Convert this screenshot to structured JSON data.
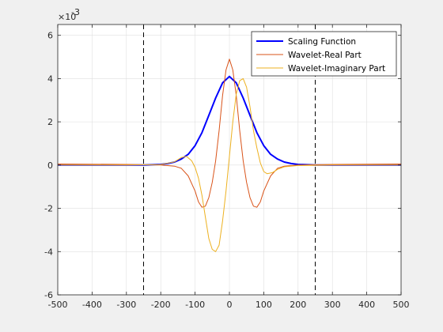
{
  "chart_data": {
    "type": "line",
    "xlim": [
      -500,
      500
    ],
    "ylim": [
      -6,
      6.5
    ],
    "y_exponent_label": "×10",
    "y_exponent_power": "-3",
    "xticks": [
      -500,
      -400,
      -300,
      -200,
      -100,
      0,
      100,
      200,
      300,
      400,
      500
    ],
    "yticks": [
      -6,
      -4,
      -2,
      0,
      2,
      4,
      6
    ],
    "grid": true,
    "legend_position": "top-right",
    "vlines": [
      -250,
      250
    ],
    "series": [
      {
        "name": "Scaling Function",
        "color": "#0000ff",
        "x": [
          -500,
          -300,
          -250,
          -200,
          -180,
          -160,
          -140,
          -120,
          -100,
          -80,
          -60,
          -40,
          -20,
          0,
          20,
          40,
          60,
          80,
          100,
          120,
          140,
          160,
          180,
          200,
          250,
          300,
          500
        ],
        "y": [
          0,
          0,
          0,
          0.03,
          0.07,
          0.14,
          0.28,
          0.5,
          0.9,
          1.5,
          2.3,
          3.1,
          3.8,
          4.1,
          3.8,
          3.1,
          2.3,
          1.5,
          0.9,
          0.5,
          0.28,
          0.14,
          0.07,
          0.03,
          0,
          0,
          0
        ]
      },
      {
        "name": "Wavelet-Real Part",
        "color": "#d95319",
        "x": [
          -500,
          -300,
          -200,
          -160,
          -140,
          -120,
          -100,
          -90,
          -80,
          -70,
          -60,
          -50,
          -40,
          -30,
          -20,
          -10,
          0,
          10,
          20,
          30,
          40,
          50,
          60,
          70,
          80,
          90,
          100,
          120,
          140,
          160,
          200,
          300,
          500
        ],
        "y": [
          0.05,
          0.03,
          0,
          -0.05,
          -0.15,
          -0.5,
          -1.2,
          -1.7,
          -1.95,
          -1.9,
          -1.5,
          -0.8,
          0.2,
          1.6,
          3.2,
          4.4,
          4.9,
          4.4,
          3.2,
          1.6,
          0.2,
          -0.8,
          -1.5,
          -1.9,
          -1.95,
          -1.7,
          -1.2,
          -0.5,
          -0.15,
          -0.05,
          0,
          0.03,
          0.05
        ]
      },
      {
        "name": "Wavelet-Imaginary Part",
        "color": "#edb120",
        "x": [
          -500,
          -300,
          -200,
          -160,
          -140,
          -125,
          -110,
          -100,
          -90,
          -80,
          -70,
          -60,
          -50,
          -40,
          -30,
          -20,
          -10,
          0,
          10,
          20,
          30,
          40,
          50,
          60,
          70,
          80,
          90,
          100,
          110,
          125,
          140,
          160,
          200,
          300,
          500
        ],
        "y": [
          0,
          0,
          0.02,
          0.15,
          0.35,
          0.4,
          0.2,
          -0.1,
          -0.6,
          -1.4,
          -2.4,
          -3.4,
          -3.9,
          -4.0,
          -3.7,
          -2.6,
          -1.2,
          0.4,
          2.0,
          3.3,
          3.9,
          4.0,
          3.6,
          2.7,
          1.6,
          0.8,
          0.1,
          -0.3,
          -0.4,
          -0.35,
          -0.2,
          -0.08,
          -0.02,
          0,
          0
        ]
      }
    ]
  }
}
